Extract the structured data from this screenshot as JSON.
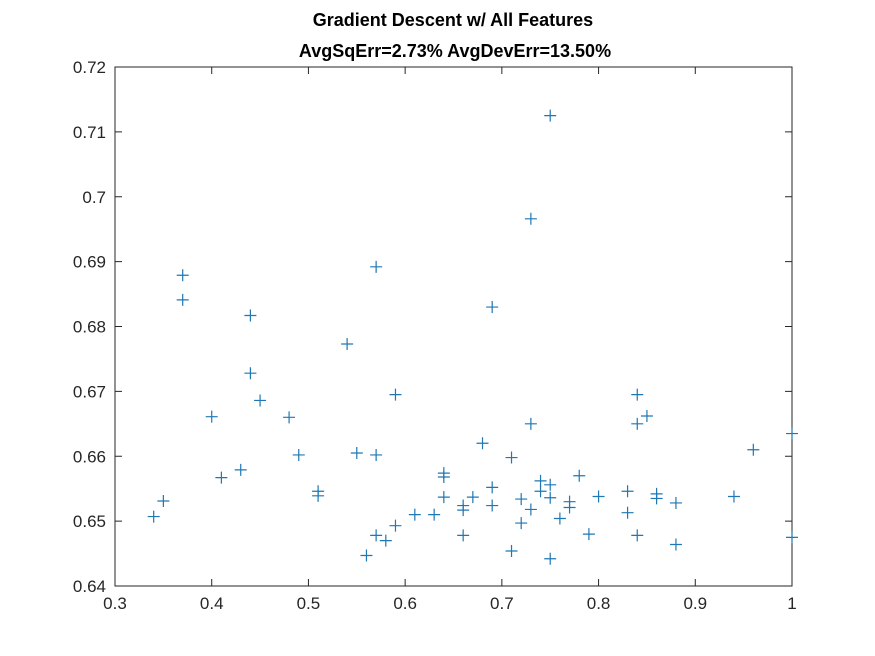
{
  "chart_data": {
    "type": "scatter",
    "title": "Gradient Descent w/ All Features",
    "subtitle": "AvgSqErr=2.73% AvgDevErr=13.50%",
    "xlabel": "",
    "ylabel": "",
    "xlim": [
      0.3,
      1.0
    ],
    "ylim": [
      0.64,
      0.72
    ],
    "x_ticks": [
      "0.3",
      "0.4",
      "0.5",
      "0.6",
      "0.7",
      "0.8",
      "0.9",
      "1"
    ],
    "y_ticks": [
      "0.64",
      "0.65",
      "0.66",
      "0.67",
      "0.68",
      "0.69",
      "0.7",
      "0.71",
      "0.72"
    ],
    "grid": false,
    "marker": "+",
    "series_color": "#1f77b4",
    "points": [
      [
        0.34,
        0.6507
      ],
      [
        0.35,
        0.6531
      ],
      [
        0.37,
        0.6879
      ],
      [
        0.37,
        0.6841
      ],
      [
        0.4,
        0.6661
      ],
      [
        0.41,
        0.6567
      ],
      [
        0.43,
        0.6579
      ],
      [
        0.44,
        0.6817
      ],
      [
        0.44,
        0.6728
      ],
      [
        0.45,
        0.6686
      ],
      [
        0.48,
        0.666
      ],
      [
        0.49,
        0.6602
      ],
      [
        0.51,
        0.6546
      ],
      [
        0.51,
        0.6539
      ],
      [
        0.54,
        0.6773
      ],
      [
        0.55,
        0.6605
      ],
      [
        0.56,
        0.6447
      ],
      [
        0.57,
        0.6892
      ],
      [
        0.57,
        0.6602
      ],
      [
        0.57,
        0.6478
      ],
      [
        0.58,
        0.647
      ],
      [
        0.59,
        0.6695
      ],
      [
        0.59,
        0.6493
      ],
      [
        0.61,
        0.651
      ],
      [
        0.63,
        0.651
      ],
      [
        0.64,
        0.6574
      ],
      [
        0.64,
        0.6568
      ],
      [
        0.64,
        0.6537
      ],
      [
        0.66,
        0.6524
      ],
      [
        0.66,
        0.6517
      ],
      [
        0.66,
        0.6478
      ],
      [
        0.67,
        0.6537
      ],
      [
        0.68,
        0.662
      ],
      [
        0.69,
        0.683
      ],
      [
        0.69,
        0.6552
      ],
      [
        0.69,
        0.6524
      ],
      [
        0.71,
        0.6598
      ],
      [
        0.71,
        0.6454
      ],
      [
        0.72,
        0.6534
      ],
      [
        0.72,
        0.6497
      ],
      [
        0.73,
        0.6966
      ],
      [
        0.73,
        0.665
      ],
      [
        0.73,
        0.6518
      ],
      [
        0.74,
        0.6562
      ],
      [
        0.74,
        0.6546
      ],
      [
        0.75,
        0.7125
      ],
      [
        0.75,
        0.6556
      ],
      [
        0.75,
        0.6536
      ],
      [
        0.75,
        0.6442
      ],
      [
        0.76,
        0.6504
      ],
      [
        0.77,
        0.653
      ],
      [
        0.77,
        0.6521
      ],
      [
        0.78,
        0.657
      ],
      [
        0.79,
        0.648
      ],
      [
        0.8,
        0.6538
      ],
      [
        0.83,
        0.6546
      ],
      [
        0.83,
        0.6513
      ],
      [
        0.84,
        0.6695
      ],
      [
        0.84,
        0.665
      ],
      [
        0.84,
        0.6478
      ],
      [
        0.85,
        0.6662
      ],
      [
        0.86,
        0.6542
      ],
      [
        0.86,
        0.6535
      ],
      [
        0.88,
        0.6528
      ],
      [
        0.88,
        0.6464
      ],
      [
        0.94,
        0.6538
      ],
      [
        0.96,
        0.661
      ],
      [
        1.0,
        0.6635
      ],
      [
        1.0,
        0.6475
      ]
    ]
  }
}
